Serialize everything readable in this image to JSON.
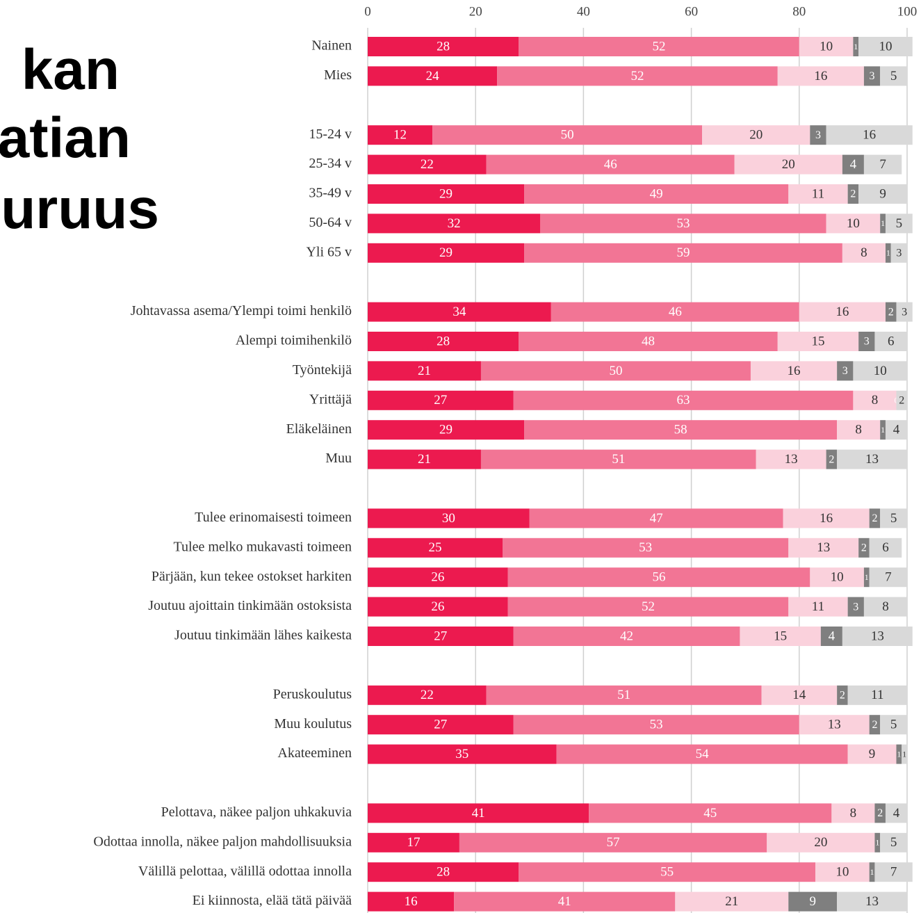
{
  "chart_data": {
    "type": "stacked-barh",
    "title": [
      "kan",
      "atian",
      "uuruus"
    ],
    "categories": [
      "Nainen",
      "Mies",
      null,
      "15-24 v",
      "25-34 v",
      "35-49 v",
      "50-64 v",
      "Yli 65 v",
      null,
      "Johtavassa asema/Ylempi toimi henkilö",
      "Alempi toimihenkilö",
      "Työntekijä",
      "Yrittäjä",
      "Eläkeläinen",
      "Muu",
      null,
      "Tulee erinomaisesti toimeen",
      "Tulee melko mukavasti toimeen",
      "Pärjään, kun tekee ostokset harkiten",
      "Joutuu ajoittain tinkimään ostoksista",
      "Joutuu tinkimään lähes kaikesta",
      null,
      "Peruskoulutus",
      "Muu koulutus",
      "Akateeminen",
      null,
      "Pelottava, näkee paljon uhkakuvia",
      "Odottaa innolla, näkee paljon mahdollisuuksia",
      "Välillä pelottaa, välillä odottaa innolla",
      "Ei kiinnosta, elää tätä päivää"
    ],
    "series": [
      {
        "color": "#ec1a4f",
        "values": [
          28,
          24,
          null,
          12,
          22,
          29,
          32,
          29,
          null,
          34,
          28,
          21,
          27,
          29,
          21,
          null,
          30,
          25,
          26,
          26,
          27,
          null,
          22,
          27,
          35,
          null,
          41,
          17,
          28,
          16
        ]
      },
      {
        "color": "#f27595",
        "values": [
          52,
          52,
          null,
          50,
          46,
          49,
          53,
          59,
          null,
          46,
          48,
          50,
          63,
          58,
          51,
          null,
          47,
          53,
          56,
          52,
          42,
          null,
          51,
          53,
          54,
          null,
          45,
          57,
          55,
          41
        ]
      },
      {
        "color": "#fad1dc",
        "values": [
          10,
          16,
          null,
          20,
          20,
          11,
          10,
          8,
          null,
          16,
          15,
          16,
          8,
          8,
          13,
          null,
          16,
          13,
          10,
          11,
          15,
          null,
          14,
          13,
          9,
          null,
          8,
          20,
          10,
          21
        ]
      },
      {
        "color": "#7f7f7f",
        "values": [
          1,
          3,
          null,
          3,
          4,
          2,
          1,
          1,
          null,
          2,
          3,
          3,
          0,
          1,
          2,
          null,
          2,
          2,
          1,
          3,
          4,
          null,
          2,
          2,
          1,
          null,
          2,
          1,
          1,
          9
        ]
      },
      {
        "color": "#d9d9d9",
        "values": [
          10,
          5,
          null,
          16,
          7,
          9,
          5,
          3,
          null,
          3,
          6,
          10,
          2,
          4,
          13,
          null,
          5,
          6,
          7,
          8,
          13,
          null,
          11,
          5,
          1,
          null,
          4,
          5,
          7,
          13
        ]
      }
    ],
    "xlim": [
      0,
      100
    ],
    "xticks": [
      0,
      20,
      40,
      60,
      80,
      100
    ],
    "grid": true
  }
}
